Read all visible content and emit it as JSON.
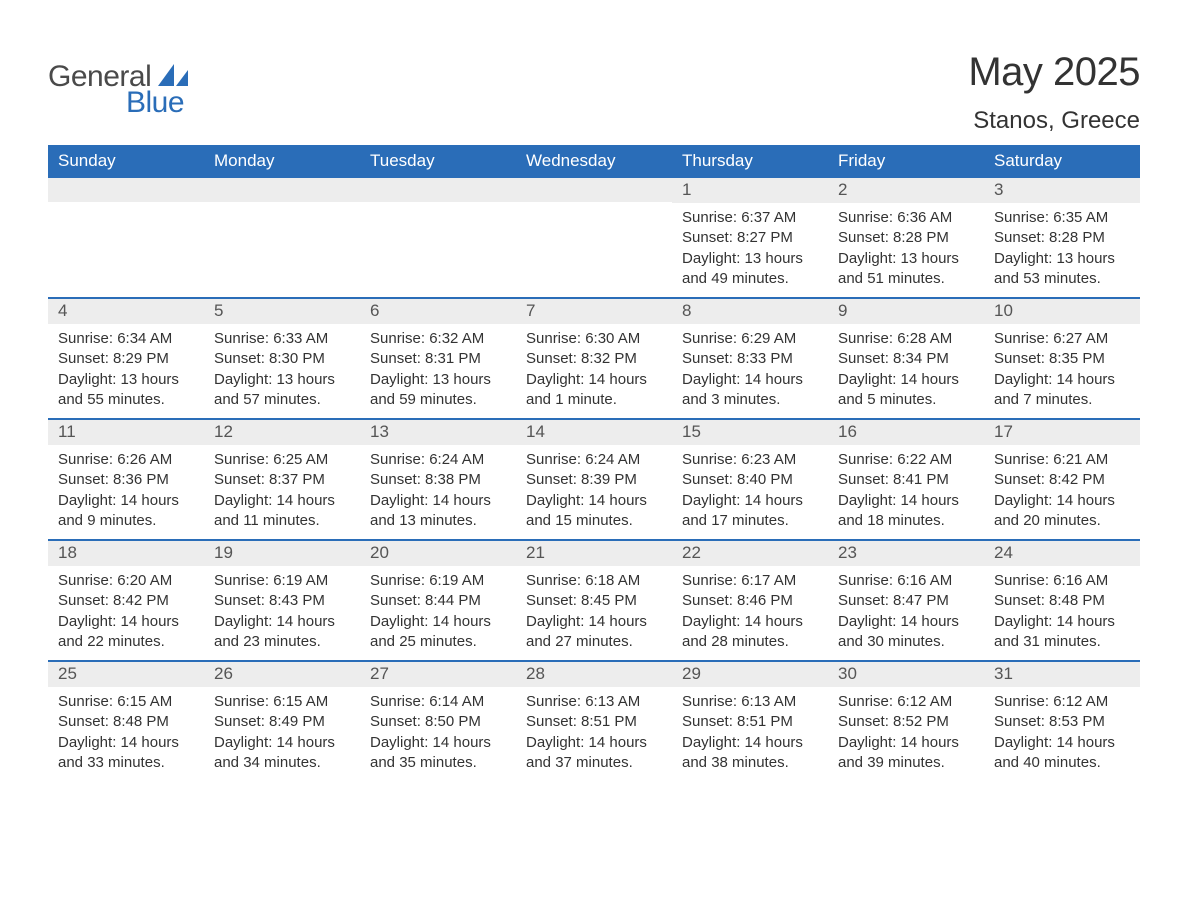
{
  "brand": {
    "part1": "General",
    "part2": "Blue",
    "sail_color": "#2a6db8",
    "text1_color": "#4a4a4a"
  },
  "title": "May 2025",
  "location": "Stanos, Greece",
  "header_bg": "#2a6db8",
  "header_fg": "#ffffff",
  "week_border": "#2a6db8",
  "daynum_bg": "#ededed",
  "body_bg": "#ffffff",
  "text_color": "#333333",
  "fontsize_title": 40,
  "fontsize_location": 24,
  "fontsize_header": 17,
  "fontsize_daynum": 17,
  "fontsize_body": 15,
  "weekdays": [
    "Sunday",
    "Monday",
    "Tuesday",
    "Wednesday",
    "Thursday",
    "Friday",
    "Saturday"
  ],
  "weeks": [
    [
      {
        "n": "",
        "sr": "",
        "ss": "",
        "dl": ""
      },
      {
        "n": "",
        "sr": "",
        "ss": "",
        "dl": ""
      },
      {
        "n": "",
        "sr": "",
        "ss": "",
        "dl": ""
      },
      {
        "n": "",
        "sr": "",
        "ss": "",
        "dl": ""
      },
      {
        "n": "1",
        "sr": "Sunrise: 6:37 AM",
        "ss": "Sunset: 8:27 PM",
        "dl": "Daylight: 13 hours and 49 minutes."
      },
      {
        "n": "2",
        "sr": "Sunrise: 6:36 AM",
        "ss": "Sunset: 8:28 PM",
        "dl": "Daylight: 13 hours and 51 minutes."
      },
      {
        "n": "3",
        "sr": "Sunrise: 6:35 AM",
        "ss": "Sunset: 8:28 PM",
        "dl": "Daylight: 13 hours and 53 minutes."
      }
    ],
    [
      {
        "n": "4",
        "sr": "Sunrise: 6:34 AM",
        "ss": "Sunset: 8:29 PM",
        "dl": "Daylight: 13 hours and 55 minutes."
      },
      {
        "n": "5",
        "sr": "Sunrise: 6:33 AM",
        "ss": "Sunset: 8:30 PM",
        "dl": "Daylight: 13 hours and 57 minutes."
      },
      {
        "n": "6",
        "sr": "Sunrise: 6:32 AM",
        "ss": "Sunset: 8:31 PM",
        "dl": "Daylight: 13 hours and 59 minutes."
      },
      {
        "n": "7",
        "sr": "Sunrise: 6:30 AM",
        "ss": "Sunset: 8:32 PM",
        "dl": "Daylight: 14 hours and 1 minute."
      },
      {
        "n": "8",
        "sr": "Sunrise: 6:29 AM",
        "ss": "Sunset: 8:33 PM",
        "dl": "Daylight: 14 hours and 3 minutes."
      },
      {
        "n": "9",
        "sr": "Sunrise: 6:28 AM",
        "ss": "Sunset: 8:34 PM",
        "dl": "Daylight: 14 hours and 5 minutes."
      },
      {
        "n": "10",
        "sr": "Sunrise: 6:27 AM",
        "ss": "Sunset: 8:35 PM",
        "dl": "Daylight: 14 hours and 7 minutes."
      }
    ],
    [
      {
        "n": "11",
        "sr": "Sunrise: 6:26 AM",
        "ss": "Sunset: 8:36 PM",
        "dl": "Daylight: 14 hours and 9 minutes."
      },
      {
        "n": "12",
        "sr": "Sunrise: 6:25 AM",
        "ss": "Sunset: 8:37 PM",
        "dl": "Daylight: 14 hours and 11 minutes."
      },
      {
        "n": "13",
        "sr": "Sunrise: 6:24 AM",
        "ss": "Sunset: 8:38 PM",
        "dl": "Daylight: 14 hours and 13 minutes."
      },
      {
        "n": "14",
        "sr": "Sunrise: 6:24 AM",
        "ss": "Sunset: 8:39 PM",
        "dl": "Daylight: 14 hours and 15 minutes."
      },
      {
        "n": "15",
        "sr": "Sunrise: 6:23 AM",
        "ss": "Sunset: 8:40 PM",
        "dl": "Daylight: 14 hours and 17 minutes."
      },
      {
        "n": "16",
        "sr": "Sunrise: 6:22 AM",
        "ss": "Sunset: 8:41 PM",
        "dl": "Daylight: 14 hours and 18 minutes."
      },
      {
        "n": "17",
        "sr": "Sunrise: 6:21 AM",
        "ss": "Sunset: 8:42 PM",
        "dl": "Daylight: 14 hours and 20 minutes."
      }
    ],
    [
      {
        "n": "18",
        "sr": "Sunrise: 6:20 AM",
        "ss": "Sunset: 8:42 PM",
        "dl": "Daylight: 14 hours and 22 minutes."
      },
      {
        "n": "19",
        "sr": "Sunrise: 6:19 AM",
        "ss": "Sunset: 8:43 PM",
        "dl": "Daylight: 14 hours and 23 minutes."
      },
      {
        "n": "20",
        "sr": "Sunrise: 6:19 AM",
        "ss": "Sunset: 8:44 PM",
        "dl": "Daylight: 14 hours and 25 minutes."
      },
      {
        "n": "21",
        "sr": "Sunrise: 6:18 AM",
        "ss": "Sunset: 8:45 PM",
        "dl": "Daylight: 14 hours and 27 minutes."
      },
      {
        "n": "22",
        "sr": "Sunrise: 6:17 AM",
        "ss": "Sunset: 8:46 PM",
        "dl": "Daylight: 14 hours and 28 minutes."
      },
      {
        "n": "23",
        "sr": "Sunrise: 6:16 AM",
        "ss": "Sunset: 8:47 PM",
        "dl": "Daylight: 14 hours and 30 minutes."
      },
      {
        "n": "24",
        "sr": "Sunrise: 6:16 AM",
        "ss": "Sunset: 8:48 PM",
        "dl": "Daylight: 14 hours and 31 minutes."
      }
    ],
    [
      {
        "n": "25",
        "sr": "Sunrise: 6:15 AM",
        "ss": "Sunset: 8:48 PM",
        "dl": "Daylight: 14 hours and 33 minutes."
      },
      {
        "n": "26",
        "sr": "Sunrise: 6:15 AM",
        "ss": "Sunset: 8:49 PM",
        "dl": "Daylight: 14 hours and 34 minutes."
      },
      {
        "n": "27",
        "sr": "Sunrise: 6:14 AM",
        "ss": "Sunset: 8:50 PM",
        "dl": "Daylight: 14 hours and 35 minutes."
      },
      {
        "n": "28",
        "sr": "Sunrise: 6:13 AM",
        "ss": "Sunset: 8:51 PM",
        "dl": "Daylight: 14 hours and 37 minutes."
      },
      {
        "n": "29",
        "sr": "Sunrise: 6:13 AM",
        "ss": "Sunset: 8:51 PM",
        "dl": "Daylight: 14 hours and 38 minutes."
      },
      {
        "n": "30",
        "sr": "Sunrise: 6:12 AM",
        "ss": "Sunset: 8:52 PM",
        "dl": "Daylight: 14 hours and 39 minutes."
      },
      {
        "n": "31",
        "sr": "Sunrise: 6:12 AM",
        "ss": "Sunset: 8:53 PM",
        "dl": "Daylight: 14 hours and 40 minutes."
      }
    ]
  ]
}
